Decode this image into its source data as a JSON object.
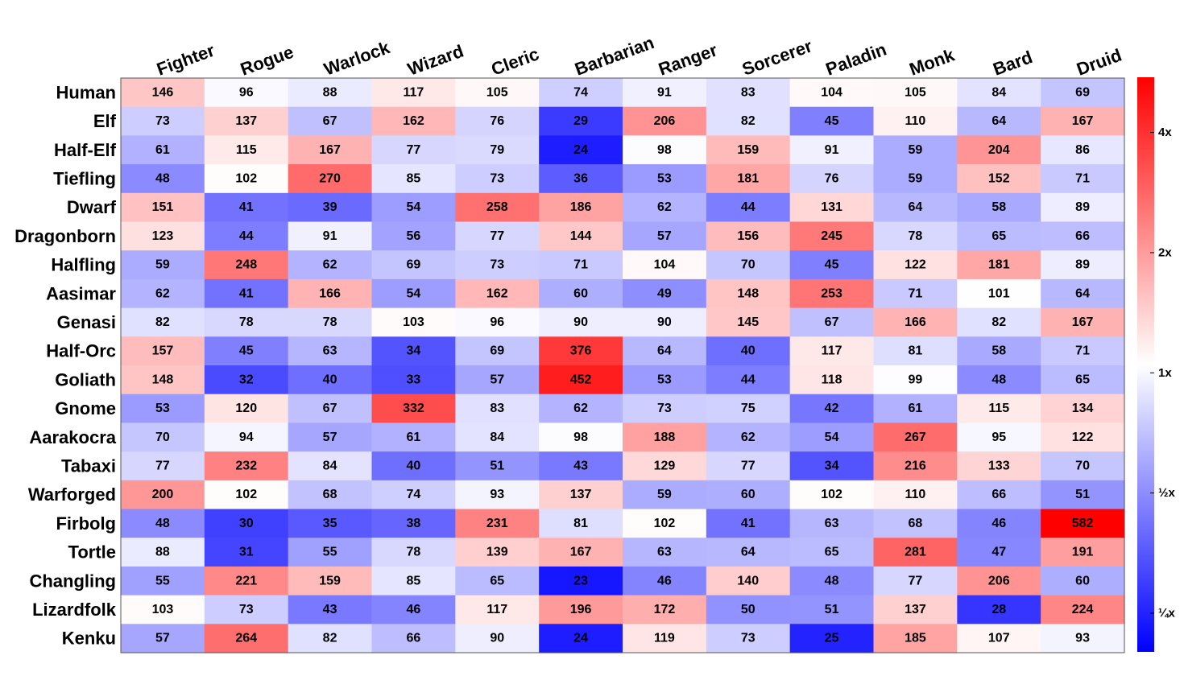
{
  "chart_data": {
    "type": "heatmap",
    "columns": [
      "Fighter",
      "Rogue",
      "Warlock",
      "Wizard",
      "Cleric",
      "Barbarian",
      "Ranger",
      "Sorcerer",
      "Paladin",
      "Monk",
      "Bard",
      "Druid"
    ],
    "rows": [
      "Human",
      "Elf",
      "Half-Elf",
      "Tiefling",
      "Dwarf",
      "Dragonborn",
      "Halfling",
      "Aasimar",
      "Genasi",
      "Half-Orc",
      "Goliath",
      "Gnome",
      "Aarakocra",
      "Tabaxi",
      "Warforged",
      "Firbolg",
      "Tortle",
      "Changling",
      "Lizardfolk",
      "Kenku"
    ],
    "values": [
      [
        146,
        96,
        88,
        117,
        105,
        74,
        91,
        83,
        104,
        105,
        84,
        69
      ],
      [
        73,
        137,
        67,
        162,
        76,
        29,
        206,
        82,
        45,
        110,
        64,
        167
      ],
      [
        61,
        115,
        167,
        77,
        79,
        24,
        98,
        159,
        91,
        59,
        204,
        86
      ],
      [
        48,
        102,
        270,
        85,
        73,
        36,
        53,
        181,
        76,
        59,
        152,
        71
      ],
      [
        151,
        41,
        39,
        54,
        258,
        186,
        62,
        44,
        131,
        64,
        58,
        89
      ],
      [
        123,
        44,
        91,
        56,
        77,
        144,
        57,
        156,
        245,
        78,
        65,
        66
      ],
      [
        59,
        248,
        62,
        69,
        73,
        71,
        104,
        70,
        45,
        122,
        181,
        89
      ],
      [
        62,
        41,
        166,
        54,
        162,
        60,
        49,
        148,
        253,
        71,
        101,
        64
      ],
      [
        82,
        78,
        78,
        103,
        96,
        90,
        90,
        145,
        67,
        166,
        82,
        167
      ],
      [
        157,
        45,
        63,
        34,
        69,
        376,
        64,
        40,
        117,
        81,
        58,
        71
      ],
      [
        148,
        32,
        40,
        33,
        57,
        452,
        53,
        44,
        118,
        99,
        48,
        65
      ],
      [
        53,
        120,
        67,
        332,
        83,
        62,
        73,
        75,
        42,
        61,
        115,
        134
      ],
      [
        70,
        94,
        57,
        61,
        84,
        98,
        188,
        62,
        54,
        267,
        95,
        122
      ],
      [
        77,
        232,
        84,
        40,
        51,
        43,
        129,
        77,
        34,
        216,
        133,
        70
      ],
      [
        200,
        102,
        68,
        74,
        93,
        137,
        59,
        60,
        102,
        110,
        66,
        51
      ],
      [
        48,
        30,
        35,
        38,
        231,
        81,
        102,
        41,
        63,
        68,
        46,
        582
      ],
      [
        88,
        31,
        55,
        78,
        139,
        167,
        63,
        64,
        65,
        281,
        47,
        191
      ],
      [
        55,
        221,
        159,
        85,
        65,
        23,
        46,
        140,
        48,
        77,
        206,
        60
      ],
      [
        103,
        73,
        43,
        46,
        117,
        196,
        172,
        50,
        51,
        137,
        28,
        224
      ],
      [
        57,
        264,
        82,
        66,
        90,
        24,
        119,
        73,
        25,
        185,
        107,
        93
      ]
    ],
    "baseline": 100,
    "colorbar": {
      "scale": "log2",
      "ratio_range": [
        0.2,
        5.5
      ],
      "ticks": [
        {
          "ratio": 4,
          "label": "4x"
        },
        {
          "ratio": 2,
          "label": "2x"
        },
        {
          "ratio": 1,
          "label": "1x"
        },
        {
          "ratio": 0.5,
          "label": "½x"
        },
        {
          "ratio": 0.25,
          "label": "¼x"
        }
      ]
    },
    "colors": {
      "low": "#0000ff",
      "mid": "#ffffff",
      "high": "#ff0000"
    }
  }
}
